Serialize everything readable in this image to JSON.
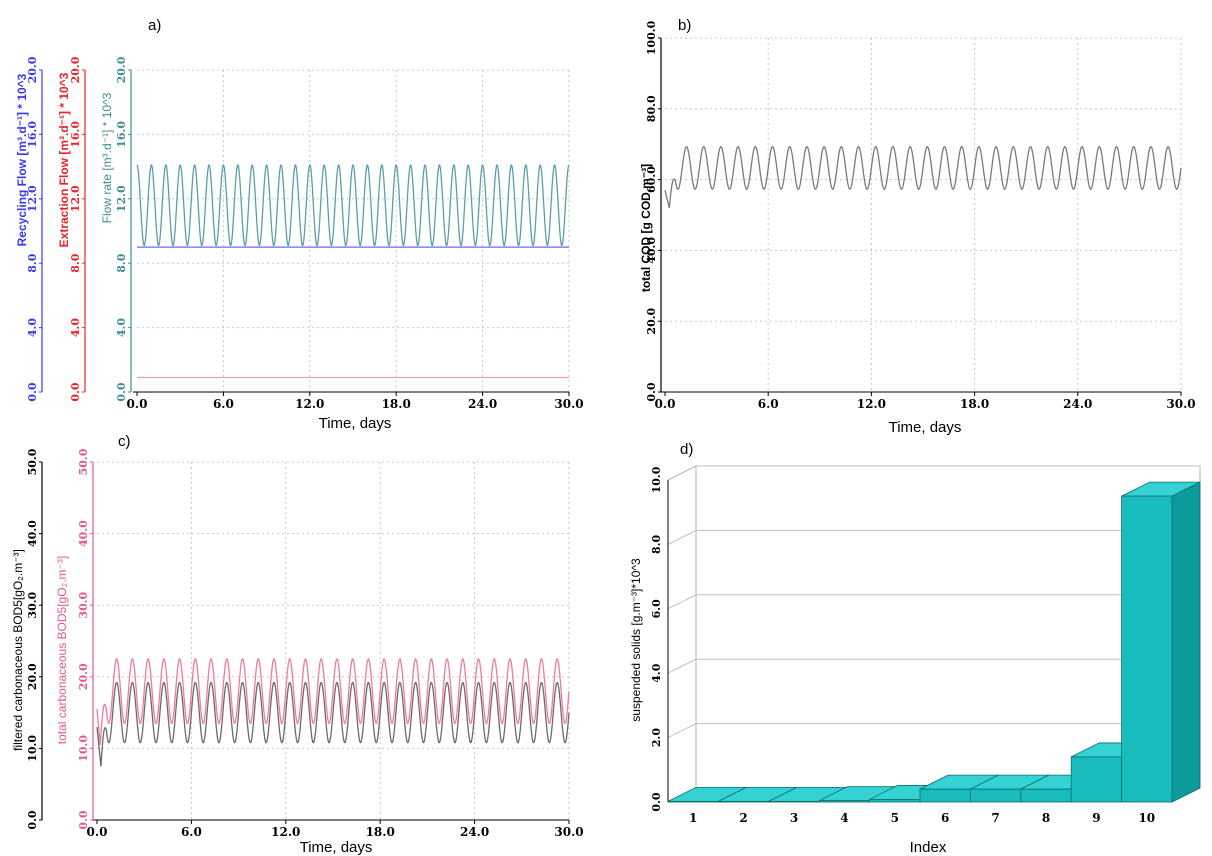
{
  "chart_data": [
    {
      "panel": "a)",
      "type": "line",
      "xlabel": "Time, days",
      "xlim": [
        0,
        30
      ],
      "x_ticks": [
        "0.0",
        "6.0",
        "12.0",
        "18.0",
        "24.0",
        "30.0"
      ],
      "grid": true,
      "axes": [
        {
          "ylabel": "Recycling Flow [m³.d⁻¹] * 10^3",
          "color": "#3a3af0",
          "ylim": [
            0,
            20
          ],
          "ticks": [
            "0.0",
            "4.0",
            "8.0",
            "12.0",
            "16.0",
            "20.0"
          ]
        },
        {
          "ylabel": "Extraction Flow [m³.d⁻¹] * 10^3",
          "color": "#e8242c",
          "ylim": [
            0,
            20
          ],
          "ticks": [
            "0.0",
            "4.0",
            "8.0",
            "12.0",
            "16.0",
            "20.0"
          ]
        },
        {
          "ylabel": "Flow rate [m³.d⁻¹] * 10^3",
          "color": "#3e8f94",
          "ylim": [
            0,
            20
          ],
          "ticks": [
            "0.0",
            "4.0",
            "8.0",
            "12.0",
            "16.0",
            "20.0"
          ]
        }
      ],
      "series": [
        {
          "color": "#5aa0a8",
          "axis": 2,
          "kind": "sine",
          "center": 11.6,
          "amplitude": 2.5,
          "cycles": 30,
          "phase": 1.5708
        },
        {
          "color": "#6a6af5",
          "axis": 0,
          "kind": "constant",
          "value": 9.0
        },
        {
          "color": "#f0a0a0",
          "axis": 1,
          "kind": "constant",
          "value": 0.9
        }
      ]
    },
    {
      "panel": "b)",
      "type": "line",
      "xlabel": "Time, days",
      "xlim": [
        0,
        30
      ],
      "x_ticks": [
        "0.0",
        "6.0",
        "12.0",
        "18.0",
        "24.0",
        "30.0"
      ],
      "grid": true,
      "axes": [
        {
          "ylabel": "total COD [g COD.m⁻³]",
          "color": "#000000",
          "ylim": [
            0,
            100
          ],
          "ticks": [
            "0.0",
            "20.0",
            "40.0",
            "60.0",
            "80.0",
            "100.0"
          ]
        }
      ],
      "series": [
        {
          "color": "#7a7a7a",
          "axis": 0,
          "kind": "sine",
          "center": 63.3,
          "amplitude": 6.0,
          "cycles": 30,
          "phase": 0,
          "start_value": 57,
          "dip_value": 52,
          "dip_x": 0.25
        }
      ]
    },
    {
      "panel": "c)",
      "type": "line",
      "xlabel": "Time, days",
      "xlim": [
        0,
        30
      ],
      "x_ticks": [
        "0.0",
        "6.0",
        "12.0",
        "18.0",
        "24.0",
        "30.0"
      ],
      "grid": true,
      "axes": [
        {
          "ylabel": "filtered carbonaceous BOD5[gO₂.m⁻³]",
          "color": "#000000",
          "ylim": [
            0,
            50
          ],
          "ticks": [
            "0.0",
            "10.0",
            "20.0",
            "30.0",
            "40.0",
            "50.0"
          ]
        },
        {
          "ylabel": "total carbonaceous BOD5[gO₂.m⁻³]",
          "color": "#e8588a",
          "ylim": [
            0,
            50
          ],
          "ticks": [
            "0.0",
            "10.0",
            "20.0",
            "30.0",
            "40.0",
            "50.0"
          ]
        }
      ],
      "series": [
        {
          "color": "#f07aa0",
          "axis": 1,
          "kind": "sine",
          "center": 18.0,
          "amplitude": 4.5,
          "cycles": 30,
          "phase": 0,
          "start_value": 15.5,
          "dip_value": 10.5,
          "dip_x": 0.2
        },
        {
          "color": "#6a6a6a",
          "axis": 0,
          "kind": "sine",
          "center": 15.0,
          "amplitude": 4.2,
          "cycles": 30,
          "phase": 0,
          "start_value": 13,
          "dip_value": 7.5,
          "dip_x": 0.25
        }
      ]
    },
    {
      "panel": "d)",
      "type": "bar",
      "style": "3d",
      "xlabel": "Index",
      "ylabel": "suspended solids [g.m⁻³]*10^3",
      "ylim": [
        0,
        10
      ],
      "y_ticks": [
        "0.0",
        "2.0",
        "4.0",
        "6.0",
        "8.0",
        "10.0"
      ],
      "categories": [
        "1",
        "2",
        "3",
        "4",
        "5",
        "6",
        "7",
        "8",
        "9",
        "10"
      ],
      "values": [
        0.02,
        0.02,
        0.02,
        0.04,
        0.08,
        0.4,
        0.4,
        0.4,
        1.4,
        9.5
      ],
      "color": "#18bcbc",
      "grid": true
    }
  ]
}
